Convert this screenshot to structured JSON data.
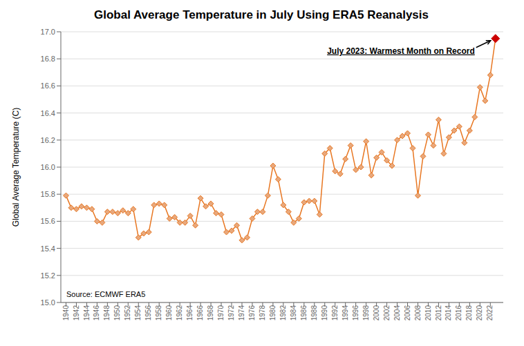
{
  "chart_data": {
    "type": "line",
    "title": "Global Average Temperature in July Using ERA5 Reanalysis",
    "y_label": "Global Average Temperature (C)",
    "annotations": [
      "July 2023: Warmest Month on Record",
      "Source: ECMWF ERA5"
    ],
    "x": [
      1940,
      1941,
      1942,
      1943,
      1944,
      1945,
      1946,
      1947,
      1948,
      1949,
      1950,
      1951,
      1952,
      1953,
      1954,
      1955,
      1956,
      1957,
      1958,
      1959,
      1960,
      1961,
      1962,
      1963,
      1964,
      1965,
      1966,
      1967,
      1968,
      1969,
      1970,
      1971,
      1972,
      1973,
      1974,
      1975,
      1976,
      1977,
      1978,
      1979,
      1980,
      1981,
      1982,
      1983,
      1984,
      1985,
      1986,
      1987,
      1988,
      1989,
      1990,
      1991,
      1992,
      1993,
      1994,
      1995,
      1996,
      1997,
      1998,
      1999,
      2000,
      2001,
      2002,
      2003,
      2004,
      2005,
      2006,
      2007,
      2008,
      2009,
      2010,
      2011,
      2012,
      2013,
      2014,
      2015,
      2016,
      2017,
      2018,
      2019,
      2020,
      2021,
      2022,
      2023
    ],
    "values": [
      15.79,
      15.7,
      15.69,
      15.71,
      15.7,
      15.69,
      15.6,
      15.59,
      15.67,
      15.67,
      15.66,
      15.68,
      15.66,
      15.69,
      15.48,
      15.51,
      15.52,
      15.72,
      15.73,
      15.72,
      15.62,
      15.63,
      15.59,
      15.59,
      15.64,
      15.57,
      15.77,
      15.71,
      15.73,
      15.66,
      15.65,
      15.52,
      15.53,
      15.57,
      15.46,
      15.48,
      15.62,
      15.67,
      15.67,
      15.79,
      16.01,
      15.91,
      15.72,
      15.67,
      15.59,
      15.62,
      15.74,
      15.75,
      15.75,
      15.65,
      16.1,
      16.14,
      15.97,
      15.95,
      16.06,
      16.16,
      15.98,
      16.0,
      16.19,
      15.94,
      16.07,
      16.11,
      16.05,
      16.01,
      16.2,
      16.23,
      16.25,
      16.14,
      15.79,
      16.08,
      16.24,
      16.16,
      16.35,
      16.1,
      16.22,
      16.27,
      16.3,
      16.18,
      16.27,
      16.37,
      16.59,
      16.49,
      16.68,
      16.95
    ],
    "color": "#E87722",
    "colors": [
      "#E8A87C",
      "#E8A87C",
      "#E8A87C",
      "#E8A87C",
      "#E8A87C",
      "#E8A87C",
      "#E8A87C",
      "#E8A87C",
      "#E8A87C",
      "#E8A87C",
      "#E8A87C",
      "#E8A87C",
      "#E8A87C",
      "#E8A87C",
      "#E8A87C",
      "#E8A87C",
      "#E8A87C",
      "#E8A87C",
      "#E8A87C",
      "#E8A87C",
      "#E8A87C",
      "#E8A87C",
      "#E8A87C",
      "#E8A87C",
      "#E8A87C",
      "#E8A87C",
      "#E8A87C",
      "#E8A87C",
      "#E8A87C",
      "#E8A87C",
      "#E8A87C",
      "#E8A87C",
      "#E8A87C",
      "#E8A87C",
      "#E8A87C",
      "#E8A87C",
      "#E8A87C",
      "#E8A87C",
      "#E8A87C",
      "#E8A87C",
      "#E8A87C",
      "#E8A87C",
      "#E8A87C",
      "#E8A87C",
      "#E8A87C",
      "#E8A87C",
      "#E8A87C",
      "#E8A87C",
      "#E8A87C",
      "#E8A87C",
      "#E8A87C",
      "#E8A87C",
      "#E8A87C",
      "#E8A87C",
      "#E8A87C",
      "#E8A87C",
      "#E8A87C",
      "#E8A87C",
      "#E8A87C",
      "#E8A87C",
      "#E8A87C",
      "#E8A87C",
      "#E8A87C",
      "#E8A87C",
      "#E8A87C",
      "#E8A87C",
      "#E8A87C",
      "#E8A87C",
      "#E8A87C",
      "#E8A87C",
      "#E8A87C",
      "#E8A87C",
      "#E8A87C",
      "#E8A87C",
      "#E8A87C",
      "#E8A87C",
      "#E8A87C",
      "#E8A87C",
      "#E8A87C",
      "#E8A87C",
      "#E8A87C",
      "#E8A87C",
      "#E8A87C",
      "#CC0000"
    ],
    "marker": "diamond",
    "xlim": [
      1939,
      2024.5
    ],
    "xticks": [
      1940,
      1942,
      1944,
      1946,
      1948,
      1950,
      1952,
      1954,
      1956,
      1958,
      1960,
      1962,
      1964,
      1966,
      1968,
      1970,
      1972,
      1974,
      1976,
      1978,
      1980,
      1982,
      1984,
      1986,
      1988,
      1990,
      1992,
      1994,
      1996,
      1998,
      2000,
      2002,
      2004,
      2006,
      2008,
      2010,
      2012,
      2014,
      2016,
      2018,
      2020,
      2022
    ],
    "ylim": [
      15.0,
      17.0
    ],
    "yticks": [
      {
        "value": 15.0,
        "label": "15.0"
      },
      {
        "value": 15.2,
        "label": "15.2"
      },
      {
        "value": 15.4,
        "label": "15.4"
      },
      {
        "value": 15.6,
        "label": "15.6"
      },
      {
        "value": 15.8,
        "label": "15.8"
      },
      {
        "value": 16.0,
        "label": "16.0"
      },
      {
        "value": 16.2,
        "label": "16.2"
      },
      {
        "value": 16.4,
        "label": "16.4"
      },
      {
        "value": 16.6,
        "label": "16.6"
      },
      {
        "value": 16.8,
        "label": "16.8"
      },
      {
        "value": 17.0,
        "label": "17.0"
      }
    ],
    "grid": "y"
  }
}
